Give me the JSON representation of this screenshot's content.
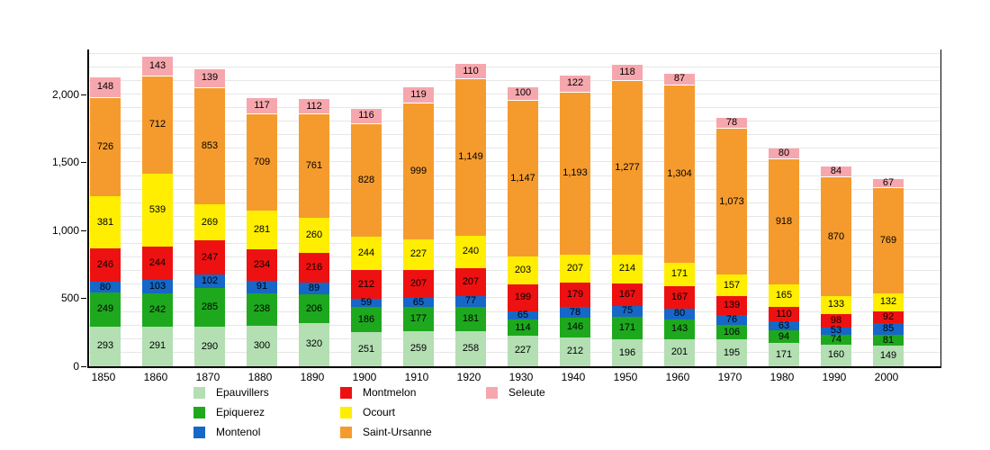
{
  "chart_data": {
    "type": "bar",
    "stacked": true,
    "title": "",
    "xlabel": "",
    "ylabel": "",
    "categories": [
      "1850",
      "1860",
      "1870",
      "1880",
      "1890",
      "1900",
      "1910",
      "1920",
      "1930",
      "1940",
      "1950",
      "1960",
      "1970",
      "1980",
      "1990",
      "2000"
    ],
    "series": [
      {
        "name": "Epauvillers",
        "color": "#b3dfb3",
        "values": [
          293,
          291,
          290,
          300,
          320,
          251,
          259,
          258,
          227,
          212,
          196,
          201,
          195,
          171,
          160,
          149
        ]
      },
      {
        "name": "Epiquerez",
        "color": "#1ea81e",
        "values": [
          249,
          242,
          285,
          238,
          206,
          186,
          177,
          181,
          114,
          146,
          171,
          143,
          106,
          94,
          74,
          81
        ]
      },
      {
        "name": "Montenol",
        "color": "#1667c7",
        "values": [
          80,
          103,
          102,
          91,
          89,
          59,
          65,
          77,
          65,
          78,
          75,
          80,
          76,
          63,
          53,
          85
        ]
      },
      {
        "name": "Montmelon",
        "color": "#ee1111",
        "values": [
          246,
          244,
          247,
          234,
          216,
          212,
          207,
          207,
          199,
          179,
          167,
          167,
          139,
          110,
          98,
          92
        ]
      },
      {
        "name": "Ocourt",
        "color": "#ffee00",
        "values": [
          381,
          539,
          269,
          281,
          260,
          244,
          227,
          240,
          203,
          207,
          214,
          171,
          157,
          165,
          133,
          132
        ]
      },
      {
        "name": "Saint-Ursanne",
        "color": "#f59b2d",
        "values": [
          726,
          712,
          853,
          709,
          761,
          828,
          999,
          1149,
          1147,
          1193,
          1277,
          1304,
          1073,
          918,
          870,
          769
        ]
      },
      {
        "name": "Seleute",
        "color": "#f6a7ad",
        "values": [
          148,
          143,
          139,
          117,
          112,
          116,
          119,
          110,
          100,
          122,
          118,
          87,
          78,
          80,
          84,
          67
        ]
      }
    ],
    "y_ticks": [
      0,
      500,
      1000,
      1500,
      2000
    ],
    "ylim": [
      0,
      2330
    ],
    "grid_interval": 100,
    "grid_color": "#e6e6e6",
    "legend_position": "bottom",
    "legend_columns": [
      [
        "Epauvillers",
        "Epiquerez",
        "Montenol"
      ],
      [
        "Montmelon",
        "Ocourt",
        "Saint-Ursanne"
      ],
      [
        "Seleute"
      ]
    ]
  }
}
